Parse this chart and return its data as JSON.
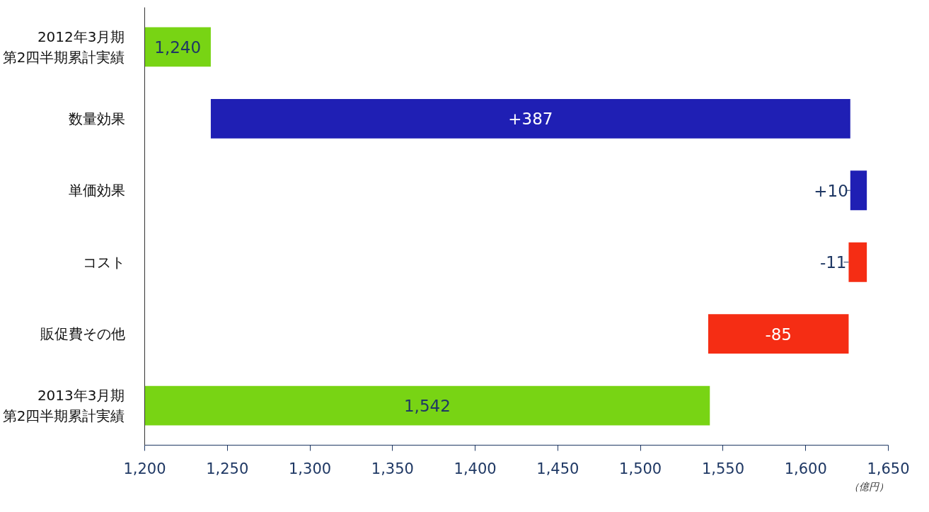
{
  "chart_data": {
    "type": "bar",
    "orientation": "horizontal",
    "categories": [
      "2012年3月期第2四半期累計実績",
      "数量効果",
      "単価効果",
      "コスト",
      "販促費その他",
      "2013年3月期第2四半期累計実績"
    ],
    "values": [
      1240,
      387,
      10,
      -11,
      -85,
      1542
    ],
    "base": [
      null,
      1240,
      1627,
      1637,
      1626,
      null
    ],
    "colors": [
      "#78d414",
      "#1f1fb4",
      "#1f1fb4",
      "#f52d14",
      "#f52d14",
      "#78d414"
    ],
    "value_labels": [
      "1,240",
      "+387",
      "+10",
      "-11",
      "-85",
      "1,542"
    ],
    "xlim": [
      1200,
      1650
    ],
    "xticks": [
      {
        "value": 1200,
        "label": "1,200"
      },
      {
        "value": 1250,
        "label": "1,250"
      },
      {
        "value": 1300,
        "label": "1,300"
      },
      {
        "value": 1350,
        "label": "1,350"
      },
      {
        "value": 1400,
        "label": "1,400"
      },
      {
        "value": 1450,
        "label": "1,450"
      },
      {
        "value": 1500,
        "label": "1,500"
      },
      {
        "value": 1550,
        "label": "1,550"
      },
      {
        "value": 1600,
        "label": "1,600"
      },
      {
        "value": 1650,
        "label": "1,650"
      }
    ],
    "grid": false,
    "annotations": [
      "（億円）"
    ]
  }
}
